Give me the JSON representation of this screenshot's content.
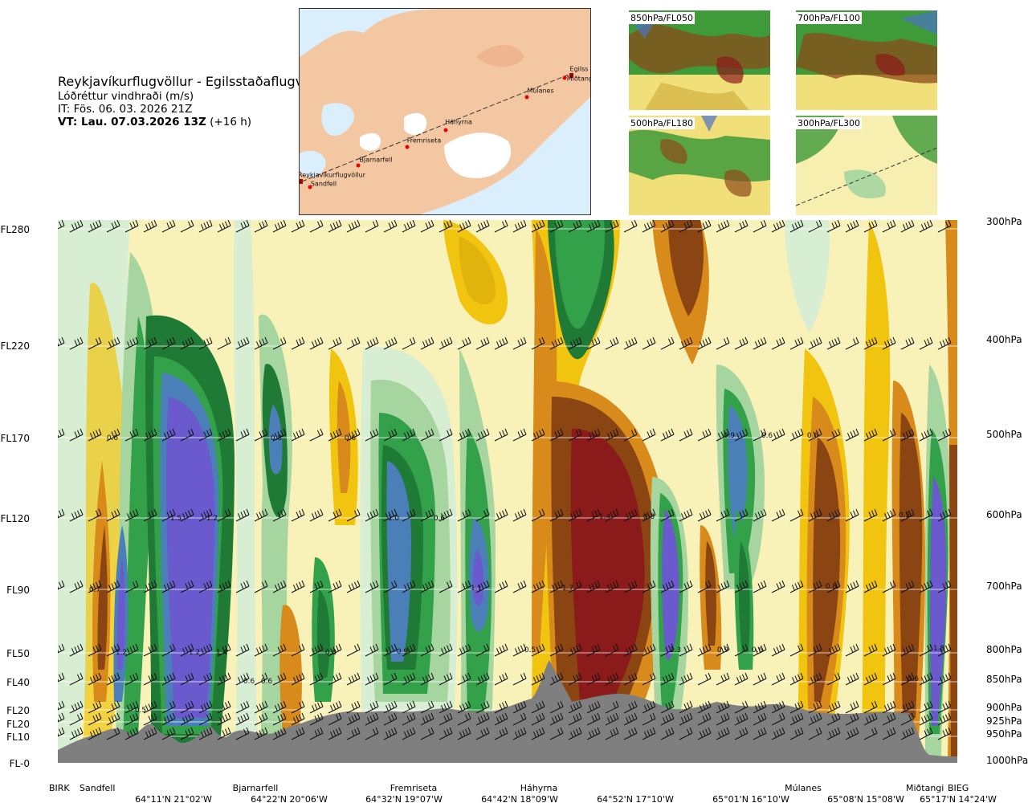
{
  "title": {
    "route": "Reykjavíkurflugvöllur - Egilsstaðaflugvöllur",
    "parameter": "Lóðréttur vindhraði (m/s)",
    "issue_time": "IT: Fös. 06. 03. 2026 21Z",
    "valid_label": "VT: Lau. 07.03.2026 13Z",
    "valid_offset": "(+16 h)"
  },
  "map": {
    "places": [
      "Reykjavíkurflugvöllur",
      "Sandfell",
      "Bjarnarfell",
      "Fremriseta",
      "Háhyrna",
      "Múlanes",
      "Egilss",
      "Miðtangi"
    ]
  },
  "thumbnails": [
    {
      "label": "850hPa/FL050"
    },
    {
      "label": "700hPa/FL100"
    },
    {
      "label": "500hPa/FL180"
    },
    {
      "label": "300hPa/FL300"
    }
  ],
  "left_levels": [
    "FL280",
    "FL220",
    "FL170",
    "FL120",
    "FL90",
    "FL50",
    "FL40",
    "FL20",
    "FL20",
    "FL10",
    "FL-0"
  ],
  "right_levels": [
    "300hPa",
    "400hPa",
    "500hPa",
    "600hPa",
    "700hPa",
    "800hPa",
    "850hPa",
    "900hPa",
    "925hPa",
    "950hPa",
    "1000hPa"
  ],
  "stations": [
    "BIRK",
    "Sandfell",
    "Bjarnarfell",
    "Fremriseta",
    "Háhyrna",
    "Múlanes",
    "Miðtangi",
    "BIEG"
  ],
  "coords": [
    "64°11'N 21°02'W",
    "64°22'N 20°06'W",
    "64°32'N 19°07'W",
    "64°42'N 18°09'W",
    "64°52'N 17°10'W",
    "65°01'N 16°10'W",
    "65°08'N 15°08'W",
    "65°17'N 14°24'W"
  ],
  "value_labels": [
    "0.6",
    "0.8",
    "0.6",
    "0.9",
    "0.6",
    "0.6",
    "1.5",
    "1.2",
    "1.0",
    "0.6",
    "1.4",
    "0.8",
    "0.5",
    "0.7",
    "1.1",
    "1.7",
    "0.8",
    "1.2",
    "1.2",
    "1.4",
    "0.8",
    "0.9",
    "0.5",
    "1.3",
    "0.9",
    "0.6",
    "1.8",
    "0.6",
    "0.6",
    "0.6",
    "0.5"
  ],
  "colors": {
    "terrain": "#7f7f7f",
    "strong_up": "#6a5acd",
    "up": "#4a7fb8",
    "green_dark": "#1f7a35",
    "green": "#33a04a",
    "green_light": "#a6d5a0",
    "green_pale": "#d8eed3",
    "yellow_pale": "#f8f1b8",
    "yellow": "#f1c40f",
    "orange": "#d88a1a",
    "brown": "#8b4513",
    "red": "#8b1a1a"
  }
}
